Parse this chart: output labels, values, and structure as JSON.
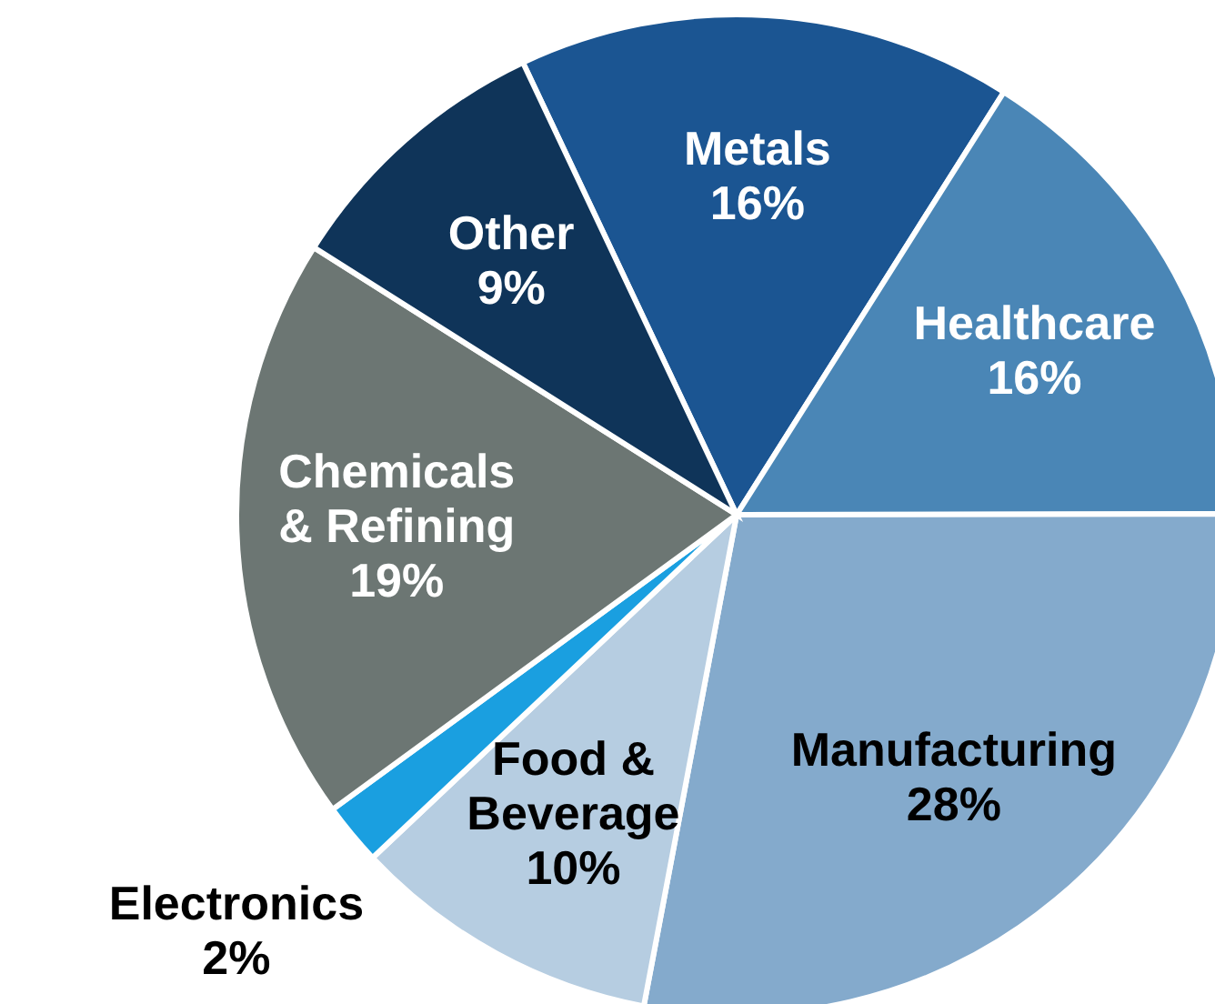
{
  "chart_data": {
    "type": "pie",
    "categories": [
      "Metals",
      "Healthcare",
      "Manufacturing",
      "Food & Beverage",
      "Electronics",
      "Chemicals & Refining",
      "Other"
    ],
    "values": [
      16,
      16,
      28,
      10,
      2,
      19,
      9
    ],
    "value_labels": [
      "16%",
      "16%",
      "28%",
      "10%",
      "2%",
      "19%",
      "9%"
    ],
    "colors": [
      "#1b5592",
      "#4a86b6",
      "#84aacc",
      "#b6cde1",
      "#1a9fe0",
      "#6c7673",
      "#0f3459"
    ]
  }
}
